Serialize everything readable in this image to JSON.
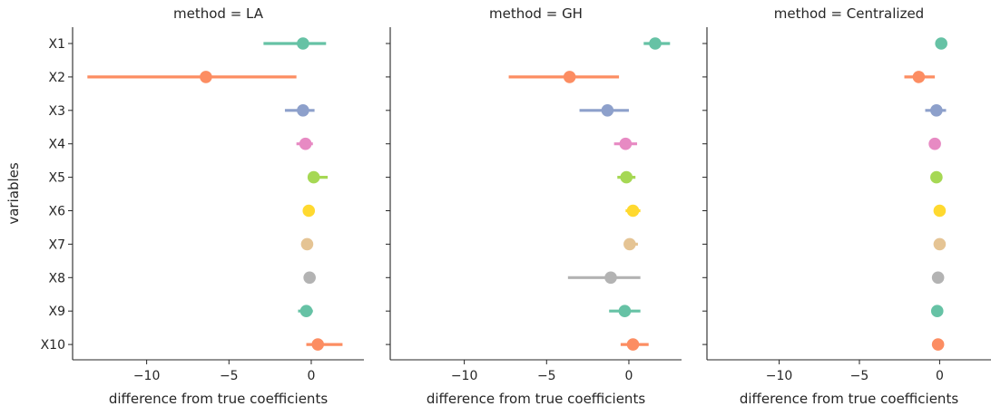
{
  "chart_data": {
    "type": "pointplot",
    "ylabel": "variables",
    "xlabel": "difference from true coefficients",
    "variables": [
      "X1",
      "X2",
      "X3",
      "X4",
      "X5",
      "X6",
      "X7",
      "X8",
      "X9",
      "X10"
    ],
    "colors": [
      "#66c2a5",
      "#fc8d62",
      "#8da0cb",
      "#e78ac3",
      "#a6d854",
      "#ffd92f",
      "#e5c494",
      "#b3b3b3",
      "#66c2a5",
      "#fc8d62"
    ],
    "xlim": [
      -14.5,
      3.2
    ],
    "xticks": [
      -10,
      -5,
      0
    ],
    "grid": false,
    "panels": [
      {
        "title": "method = LA",
        "points": [
          {
            "var": "X1",
            "value": -0.5,
            "lo": -2.9,
            "hi": 0.9
          },
          {
            "var": "X2",
            "value": -6.4,
            "lo": -13.6,
            "hi": -0.9
          },
          {
            "var": "X3",
            "value": -0.5,
            "lo": -1.6,
            "hi": 0.2
          },
          {
            "var": "X4",
            "value": -0.35,
            "lo": -0.9,
            "hi": 0.1
          },
          {
            "var": "X5",
            "value": 0.15,
            "lo": -0.2,
            "hi": 1.0
          },
          {
            "var": "X6",
            "value": -0.15,
            "lo": -0.3,
            "hi": 0.05
          },
          {
            "var": "X7",
            "value": -0.25,
            "lo": -0.45,
            "hi": -0.05
          },
          {
            "var": "X8",
            "value": -0.1,
            "lo": -0.25,
            "hi": 0.05
          },
          {
            "var": "X9",
            "value": -0.3,
            "lo": -0.8,
            "hi": 0.1
          },
          {
            "var": "X10",
            "value": 0.4,
            "lo": -0.3,
            "hi": 1.9
          }
        ]
      },
      {
        "title": "method = GH",
        "points": [
          {
            "var": "X1",
            "value": 1.6,
            "lo": 0.9,
            "hi": 2.5
          },
          {
            "var": "X2",
            "value": -3.6,
            "lo": -7.3,
            "hi": -0.6
          },
          {
            "var": "X3",
            "value": -1.3,
            "lo": -3.0,
            "hi": 0.0
          },
          {
            "var": "X4",
            "value": -0.2,
            "lo": -0.9,
            "hi": 0.5
          },
          {
            "var": "X5",
            "value": -0.15,
            "lo": -0.7,
            "hi": 0.4
          },
          {
            "var": "X6",
            "value": 0.25,
            "lo": -0.2,
            "hi": 0.7
          },
          {
            "var": "X7",
            "value": 0.05,
            "lo": -0.3,
            "hi": 0.55
          },
          {
            "var": "X8",
            "value": -1.1,
            "lo": -3.7,
            "hi": 0.7
          },
          {
            "var": "X9",
            "value": -0.25,
            "lo": -1.2,
            "hi": 0.7
          },
          {
            "var": "X10",
            "value": 0.25,
            "lo": -0.5,
            "hi": 1.2
          }
        ]
      },
      {
        "title": "method = Centralized",
        "points": [
          {
            "var": "X1",
            "value": 0.1,
            "lo": 0.05,
            "hi": 0.15
          },
          {
            "var": "X2",
            "value": -1.3,
            "lo": -2.2,
            "hi": -0.3
          },
          {
            "var": "X3",
            "value": -0.2,
            "lo": -0.9,
            "hi": 0.4
          },
          {
            "var": "X4",
            "value": -0.3,
            "lo": -0.6,
            "hi": 0.0
          },
          {
            "var": "X5",
            "value": -0.2,
            "lo": -0.35,
            "hi": -0.05
          },
          {
            "var": "X6",
            "value": 0.0,
            "lo": -0.15,
            "hi": 0.15
          },
          {
            "var": "X7",
            "value": 0.0,
            "lo": -0.1,
            "hi": 0.1
          },
          {
            "var": "X8",
            "value": -0.1,
            "lo": -0.2,
            "hi": 0.0
          },
          {
            "var": "X9",
            "value": -0.15,
            "lo": -0.25,
            "hi": -0.05
          },
          {
            "var": "X10",
            "value": -0.1,
            "lo": -0.25,
            "hi": 0.05
          }
        ]
      }
    ]
  }
}
